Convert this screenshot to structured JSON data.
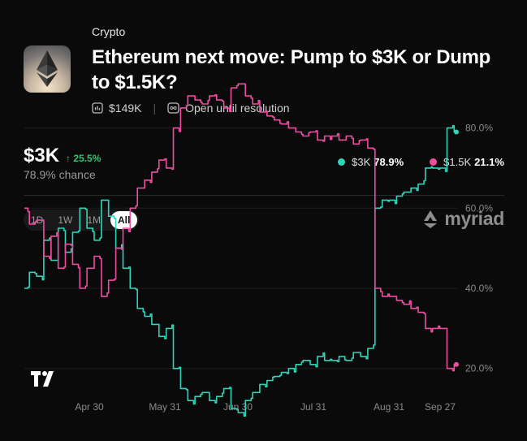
{
  "market": {
    "category": "Crypto",
    "title": "Ethereum next move: Pump to $3K or Dump to $1.5K?",
    "volume": "$149K",
    "status": "Open until resolution"
  },
  "summary": {
    "leading_outcome": "$3K",
    "change": "↑ 25.5%",
    "chance": "78.9% chance"
  },
  "legend": [
    {
      "label": "$3K",
      "value": "78.9%",
      "color": "#2fd4b9"
    },
    {
      "label": "$1.5K",
      "value": "21.1%",
      "color": "#ee4da2"
    }
  ],
  "ranges": [
    "1D",
    "1W",
    "1M",
    "All"
  ],
  "active_range": "All",
  "brand": "myriad",
  "chart_data": {
    "type": "line",
    "x_ticks": [
      "Apr 30",
      "May 31",
      "Jun 30",
      "Jul 31",
      "Aug 31",
      "Sep 27"
    ],
    "y_ticks": [
      "80.0%",
      "60.0%",
      "40.0%",
      "20.0%"
    ],
    "ylim": [
      0,
      100
    ],
    "series": [
      {
        "name": "$3K",
        "color": "#2fd4b9",
        "values": [
          40,
          44,
          43,
          52,
          47,
          55,
          49,
          54,
          60,
          55,
          52,
          62,
          58,
          50,
          45,
          40,
          35,
          33,
          31,
          28,
          30,
          20,
          15,
          12,
          13,
          14,
          12,
          13,
          15,
          10,
          9,
          12,
          14,
          16,
          17,
          18,
          19,
          20,
          21,
          22,
          21,
          23,
          22,
          22,
          23,
          22,
          24,
          23,
          25,
          60,
          62,
          62,
          63,
          64,
          65,
          66,
          70,
          70,
          70,
          80,
          79
        ]
      },
      {
        "name": "$1.5K",
        "color": "#ee4da2",
        "values": [
          60,
          56,
          57,
          48,
          53,
          45,
          51,
          46,
          40,
          45,
          48,
          38,
          42,
          50,
          55,
          60,
          65,
          67,
          69,
          72,
          70,
          80,
          85,
          88,
          87,
          86,
          88,
          87,
          85,
          90,
          91,
          88,
          86,
          84,
          83,
          82,
          81,
          80,
          79,
          78,
          79,
          77,
          78,
          78,
          77,
          78,
          76,
          77,
          75,
          40,
          38,
          38,
          37,
          36,
          35,
          34,
          30,
          30,
          30,
          20,
          21
        ]
      }
    ]
  }
}
